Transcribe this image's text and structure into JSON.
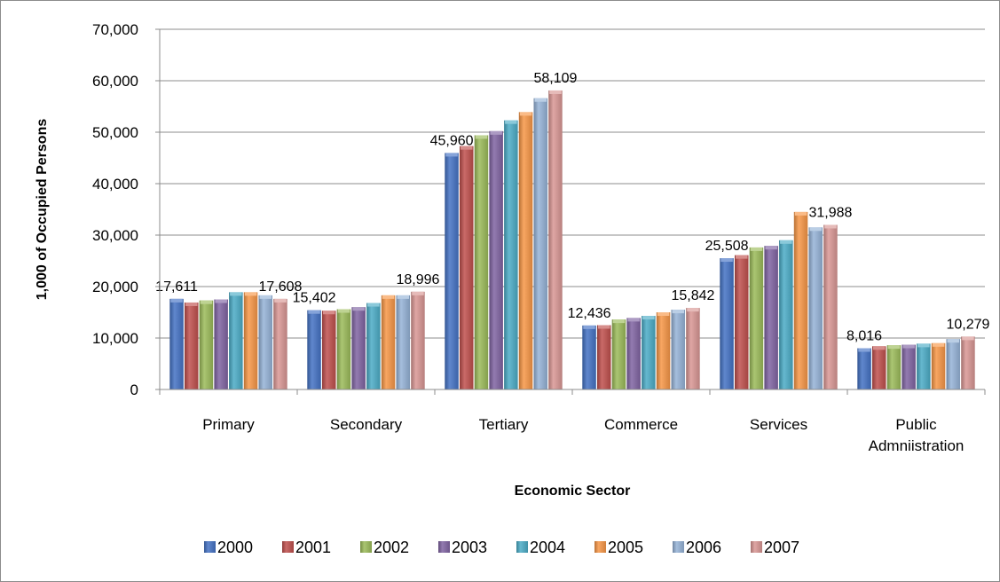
{
  "chart_data": {
    "type": "bar",
    "title": "",
    "xlabel": "Economic Sector",
    "ylabel": "1,000 of Occupied Persons",
    "ylim": [
      0,
      70000
    ],
    "yticks": [
      0,
      10000,
      20000,
      30000,
      40000,
      50000,
      60000,
      70000
    ],
    "ytick_labels": [
      "0",
      "10,000",
      "20,000",
      "30,000",
      "40,000",
      "50,000",
      "60,000",
      "70,000"
    ],
    "grid": true,
    "legend_position": "bottom",
    "categories": [
      [
        "Primary"
      ],
      [
        "Secondary"
      ],
      [
        "Tertiary"
      ],
      [
        "Commerce"
      ],
      [
        "Services"
      ],
      [
        "Public",
        "Admniistration"
      ]
    ],
    "series": [
      {
        "name": "2000",
        "color": "#4472C4",
        "values": [
          17611,
          15402,
          45960,
          12436,
          25508,
          8016
        ]
      },
      {
        "name": "2001",
        "color": "#C0504D",
        "values": [
          16900,
          15300,
          47300,
          12500,
          26100,
          8400
        ]
      },
      {
        "name": "2002",
        "color": "#9BBB59",
        "values": [
          17300,
          15600,
          49400,
          13600,
          27600,
          8600
        ]
      },
      {
        "name": "2003",
        "color": "#8064A2",
        "values": [
          17500,
          16000,
          50200,
          13900,
          27900,
          8700
        ]
      },
      {
        "name": "2004",
        "color": "#4BACC6",
        "values": [
          18900,
          16800,
          52300,
          14300,
          29000,
          8900
        ]
      },
      {
        "name": "2005",
        "color": "#F79646",
        "values": [
          18900,
          18300,
          53900,
          15000,
          34500,
          9000
        ]
      },
      {
        "name": "2006",
        "color": "#95B3D7",
        "values": [
          18300,
          18300,
          56600,
          15500,
          31500,
          9800
        ]
      },
      {
        "name": "2007",
        "color": "#D99694",
        "values": [
          17608,
          18996,
          58109,
          15842,
          31988,
          10279
        ]
      }
    ],
    "data_labels": [
      {
        "category": 0,
        "series": 0,
        "text": "17,611"
      },
      {
        "category": 0,
        "series": 7,
        "text": "17,608"
      },
      {
        "category": 1,
        "series": 0,
        "text": "15,402"
      },
      {
        "category": 1,
        "series": 7,
        "text": "18,996"
      },
      {
        "category": 2,
        "series": 0,
        "text": "45,960"
      },
      {
        "category": 2,
        "series": 7,
        "text": "58,109"
      },
      {
        "category": 3,
        "series": 0,
        "text": "12,436"
      },
      {
        "category": 3,
        "series": 7,
        "text": "15,842"
      },
      {
        "category": 4,
        "series": 0,
        "text": "25,508"
      },
      {
        "category": 4,
        "series": 7,
        "text": "31,988"
      },
      {
        "category": 5,
        "series": 0,
        "text": "8,016"
      },
      {
        "category": 5,
        "series": 7,
        "text": "10,279"
      }
    ]
  }
}
